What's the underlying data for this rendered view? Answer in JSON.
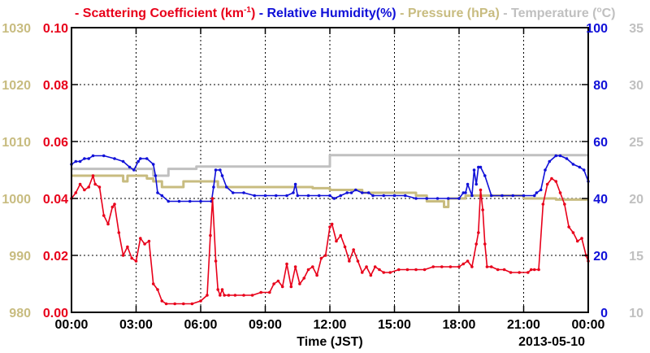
{
  "chart_data": {
    "type": "line",
    "xlabel": "Time (JST)",
    "date_label": "2013-05-10",
    "x_ticks": [
      "00:00",
      "03:00",
      "06:00",
      "09:00",
      "12:00",
      "15:00",
      "18:00",
      "21:00",
      "00:00"
    ],
    "xlim_hours": [
      0,
      24
    ],
    "grid": true,
    "legend": [
      {
        "marker": "-",
        "text": "Scattering Coefficient (km",
        "sup": "-1",
        "close": ")",
        "color": "#e8001a"
      },
      {
        "marker": "-",
        "text": "Relative Humidity(%)",
        "color": "#1010d8"
      },
      {
        "marker": "-",
        "text": "Pressure (hPa)",
        "color": "#c8bc80"
      },
      {
        "marker": "-",
        "text": "Temperature (",
        "sup": "o",
        "close": "C)",
        "color": "#c0c0c0"
      }
    ],
    "axes": {
      "scattering": {
        "side": "left-inner",
        "ylim": [
          0,
          0.1
        ],
        "ticks": [
          "0.00",
          "0.02",
          "0.04",
          "0.06",
          "0.08",
          "0.10"
        ],
        "color": "#e8001a"
      },
      "pressure": {
        "side": "left-outer",
        "ylim": [
          980,
          1030
        ],
        "ticks": [
          "980",
          "990",
          "1000",
          "1010",
          "1020",
          "1030"
        ],
        "color": "#c8bc80"
      },
      "humidity": {
        "side": "right-inner",
        "ylim": [
          0,
          100
        ],
        "ticks": [
          "0",
          "20",
          "40",
          "60",
          "80",
          "100"
        ],
        "color": "#1010d8"
      },
      "temperature": {
        "side": "right-outer",
        "ylim": [
          10,
          35
        ],
        "ticks": [
          "10",
          "15",
          "20",
          "25",
          "30",
          "35"
        ],
        "color": "#c0c0c0"
      }
    },
    "series": [
      {
        "key": "scattering",
        "axis": "scattering",
        "color": "#e8001a",
        "markers": true,
        "x": [
          0,
          0.2,
          0.4,
          0.6,
          0.8,
          1.0,
          1.1,
          1.3,
          1.5,
          1.7,
          1.9,
          2.0,
          2.2,
          2.4,
          2.6,
          2.8,
          3.0,
          3.2,
          3.4,
          3.6,
          3.8,
          4.0,
          4.2,
          4.4,
          4.8,
          5.2,
          5.6,
          6.0,
          6.3,
          6.45,
          6.55,
          6.7,
          6.8,
          6.9,
          7.0,
          7.1,
          7.3,
          7.6,
          8.0,
          8.4,
          8.8,
          9.2,
          9.4,
          9.6,
          9.8,
          10.0,
          10.2,
          10.4,
          10.6,
          10.8,
          11.0,
          11.2,
          11.4,
          11.6,
          11.8,
          12.0,
          12.1,
          12.3,
          12.5,
          12.7,
          12.9,
          13.1,
          13.3,
          13.5,
          13.7,
          13.9,
          14.1,
          14.3,
          14.5,
          14.8,
          15.2,
          15.6,
          16.0,
          16.4,
          16.8,
          17.2,
          17.6,
          18.0,
          18.2,
          18.4,
          18.6,
          18.8,
          18.9,
          19.0,
          19.1,
          19.2,
          19.3,
          19.5,
          19.8,
          20.1,
          20.4,
          20.8,
          21.2,
          21.35,
          21.5,
          21.7,
          21.9,
          22.1,
          22.3,
          22.5,
          22.7,
          22.9,
          23.1,
          23.3,
          23.5,
          23.7,
          23.9,
          24.0
        ],
        "y": [
          0.04,
          0.042,
          0.045,
          0.043,
          0.044,
          0.048,
          0.045,
          0.044,
          0.034,
          0.031,
          0.037,
          0.038,
          0.028,
          0.02,
          0.023,
          0.019,
          0.018,
          0.026,
          0.024,
          0.025,
          0.01,
          0.008,
          0.004,
          0.003,
          0.003,
          0.003,
          0.003,
          0.004,
          0.006,
          0.027,
          0.04,
          0.018,
          0.008,
          0.006,
          0.008,
          0.006,
          0.006,
          0.006,
          0.006,
          0.006,
          0.007,
          0.007,
          0.01,
          0.011,
          0.009,
          0.017,
          0.009,
          0.016,
          0.01,
          0.012,
          0.015,
          0.016,
          0.013,
          0.019,
          0.02,
          0.03,
          0.031,
          0.025,
          0.027,
          0.023,
          0.018,
          0.022,
          0.018,
          0.014,
          0.016,
          0.013,
          0.016,
          0.015,
          0.014,
          0.014,
          0.015,
          0.015,
          0.015,
          0.015,
          0.016,
          0.016,
          0.016,
          0.016,
          0.017,
          0.018,
          0.016,
          0.024,
          0.028,
          0.043,
          0.036,
          0.024,
          0.016,
          0.016,
          0.015,
          0.015,
          0.014,
          0.014,
          0.014,
          0.015,
          0.015,
          0.015,
          0.038,
          0.045,
          0.047,
          0.046,
          0.042,
          0.038,
          0.03,
          0.028,
          0.025,
          0.026,
          0.02,
          0.018
        ]
      },
      {
        "key": "humidity",
        "axis": "humidity",
        "color": "#1010d8",
        "markers": true,
        "x": [
          0,
          0.2,
          0.4,
          0.6,
          0.8,
          1.0,
          1.5,
          2.0,
          2.4,
          2.7,
          2.9,
          3.1,
          3.2,
          3.5,
          3.8,
          3.9,
          4.0,
          4.2,
          4.5,
          5.0,
          5.5,
          6.0,
          6.5,
          6.6,
          6.7,
          6.9,
          7.0,
          7.2,
          7.5,
          8.0,
          8.5,
          9.0,
          9.5,
          10.0,
          10.3,
          10.4,
          10.5,
          11.0,
          11.5,
          12.0,
          12.2,
          12.5,
          12.8,
          13.0,
          13.2,
          13.5,
          13.8,
          14.0,
          14.5,
          15.0,
          15.5,
          16.0,
          16.5,
          17.0,
          17.5,
          18.0,
          18.2,
          18.3,
          18.4,
          18.6,
          18.7,
          18.8,
          18.9,
          19.0,
          19.2,
          19.5,
          20.0,
          20.5,
          21.0,
          21.5,
          21.6,
          21.8,
          22.0,
          22.2,
          22.5,
          22.7,
          23.0,
          23.3,
          23.6,
          23.8,
          24.0
        ],
        "y": [
          52,
          53,
          53,
          54,
          54,
          55,
          55,
          54,
          53,
          51,
          50,
          53,
          54,
          54,
          52,
          48,
          42,
          41,
          39,
          39,
          39,
          39,
          39,
          44,
          50,
          50,
          48,
          44,
          42,
          42,
          41,
          41,
          41,
          41,
          42,
          45,
          41,
          41,
          41,
          41,
          40,
          41,
          42,
          42,
          43,
          42,
          42,
          41,
          41,
          41,
          41,
          40,
          40,
          40,
          40,
          40,
          42,
          42,
          45,
          41,
          50,
          45,
          51,
          51,
          48,
          41,
          41,
          41,
          41,
          41,
          42,
          43,
          50,
          53,
          55,
          55,
          54,
          52,
          51,
          50,
          46
        ]
      },
      {
        "key": "pressure",
        "axis": "pressure",
        "color": "#c8bc80",
        "markers": false,
        "x": [
          0,
          2.4,
          2.4,
          2.6,
          2.6,
          3.5,
          3.5,
          3.8,
          3.8,
          4.2,
          4.2,
          5.2,
          5.2,
          6.8,
          6.8,
          8.0,
          8.0,
          10.5,
          10.5,
          11.2,
          11.2,
          12.0,
          12.0,
          13.5,
          13.5,
          16.0,
          16.0,
          16.5,
          16.5,
          17.3,
          17.3,
          17.5,
          17.5,
          18.3,
          18.3,
          21.0,
          21.0,
          22.5,
          22.5,
          24.0
        ],
        "y": [
          1004,
          1004,
          1003,
          1003,
          1004,
          1004,
          1003.5,
          1003.5,
          1003,
          1003,
          1002,
          1002,
          1003,
          1003,
          1002,
          1002,
          1002,
          1002,
          1002,
          1002,
          1001.8,
          1001.8,
          1001.5,
          1001.5,
          1001,
          1001,
          1000.5,
          1000.5,
          999.5,
          999.5,
          998.5,
          998.5,
          1000,
          1000,
          1000.5,
          1000.5,
          1000,
          1000,
          999.8,
          999.8
        ]
      },
      {
        "key": "temperature",
        "axis": "temperature",
        "color": "#c0c0c0",
        "markers": false,
        "x": [
          0,
          3.8,
          3.8,
          4.5,
          4.5,
          5.8,
          5.8,
          12.0,
          12.0,
          24.0
        ],
        "y": [
          22.6,
          22.6,
          22.0,
          22.0,
          22.6,
          22.6,
          22.8,
          22.8,
          23.8,
          23.8
        ]
      }
    ]
  }
}
